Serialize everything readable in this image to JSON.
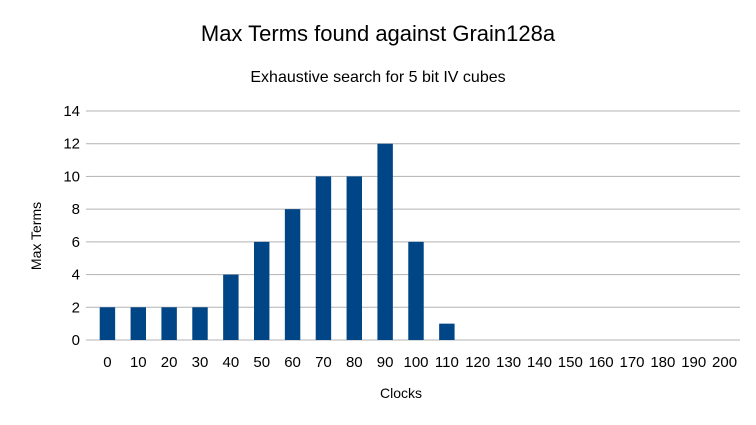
{
  "chart_data": {
    "type": "bar",
    "title": "Max Terms found against Grain128a",
    "subtitle": "Exhaustive search for 5 bit IV cubes",
    "xlabel": "Clocks",
    "ylabel": "Max Terms",
    "ylim": [
      0,
      14
    ],
    "yticks": [
      0,
      2,
      4,
      6,
      8,
      10,
      12,
      14
    ],
    "grid": true,
    "legend": "none",
    "bar_color": "#004586",
    "categories": [
      "0",
      "10",
      "20",
      "30",
      "40",
      "50",
      "60",
      "70",
      "80",
      "90",
      "100",
      "110",
      "120",
      "130",
      "140",
      "150",
      "160",
      "170",
      "180",
      "190",
      "200"
    ],
    "values": [
      2,
      2,
      2,
      2,
      4,
      6,
      8,
      10,
      10,
      12,
      6,
      1,
      0,
      0,
      0,
      0,
      0,
      0,
      0,
      0,
      0
    ]
  }
}
